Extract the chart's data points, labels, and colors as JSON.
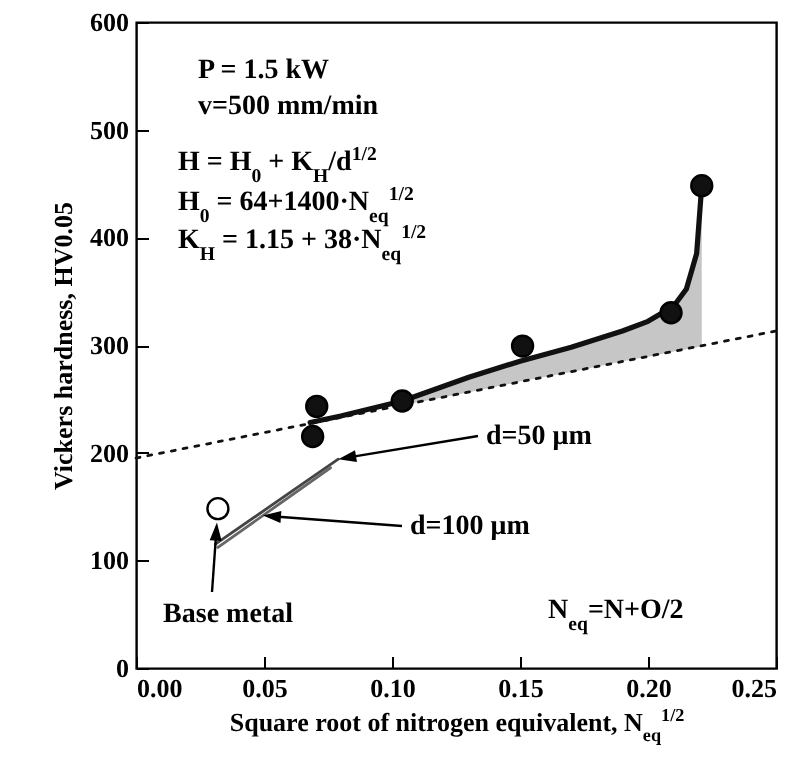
{
  "chart_data": {
    "type": "line",
    "xlabel": "Square root of nitrogen equivalent,  N$_{eq}$$^{1/2}$",
    "ylabel": "Vickers hardness,  HV0.05",
    "xlim": [
      0,
      0.25
    ],
    "ylim": [
      0,
      600
    ],
    "xticks": [
      {
        "value": 0,
        "label": "0.00"
      },
      0.05,
      {
        "value": 0.1,
        "label": "0.10"
      },
      0.15,
      {
        "value": 0.2,
        "label": "0.20"
      },
      0.25
    ],
    "yticks": [
      0,
      100,
      200,
      300,
      400,
      500,
      600
    ],
    "series": [
      {
        "type": "scatter",
        "marker": "circle",
        "color": "#111111",
        "x": [
          0.0706,
          0.069,
          0.104,
          0.151,
          0.209,
          0.221
        ],
        "values": [
          243,
          215,
          248,
          299,
          330,
          448
        ]
      },
      {
        "type": "scatter",
        "marker": "circle",
        "color": "#ffffff",
        "x": [
          0.032
        ],
        "values": [
          148
        ]
      },
      {
        "color": "#111111",
        "x": [
          0.068,
          0.08,
          0.104,
          0.13,
          0.15,
          0.17,
          0.19,
          0.2,
          0.21,
          0.215,
          0.219,
          0.221
        ],
        "values": [
          228,
          234,
          248,
          270,
          285,
          298,
          313,
          322,
          336,
          352,
          385,
          448
        ],
        "lower": [
          null,
          null,
          244,
          256,
          266,
          275,
          285,
          289,
          294,
          296,
          298,
          299
        ],
        "upper": [
          null,
          null,
          248,
          270,
          285,
          298,
          313,
          322,
          336,
          352,
          385,
          448
        ]
      },
      {
        "color": "#111111",
        "line_style": "dotted",
        "x": [
          0,
          0.25
        ],
        "values": [
          195,
          313
        ]
      },
      {
        "color": "#444444",
        "x": [
          0.031,
          0.079
        ],
        "values": [
          115,
          194
        ]
      },
      {
        "color": "#666666",
        "x": [
          0.032,
          0.076
        ],
        "values": [
          112,
          186
        ]
      }
    ],
    "annotations": [
      "P = 1.5 kW",
      "v=500 mm/min",
      "H = H$_{0}$ + K$_{H}$/d$^{1/2}$",
      "H$_{0}$ = 64+1400·N$_{eq}$$^{1/2}$",
      "K$_{H}$ = 1.15 + 38·N$_{eq}$$^{1/2}$",
      "d=50 μm",
      "d=100 μm",
      "Base metal",
      "N$_{eq}$=N+O/2"
    ]
  }
}
